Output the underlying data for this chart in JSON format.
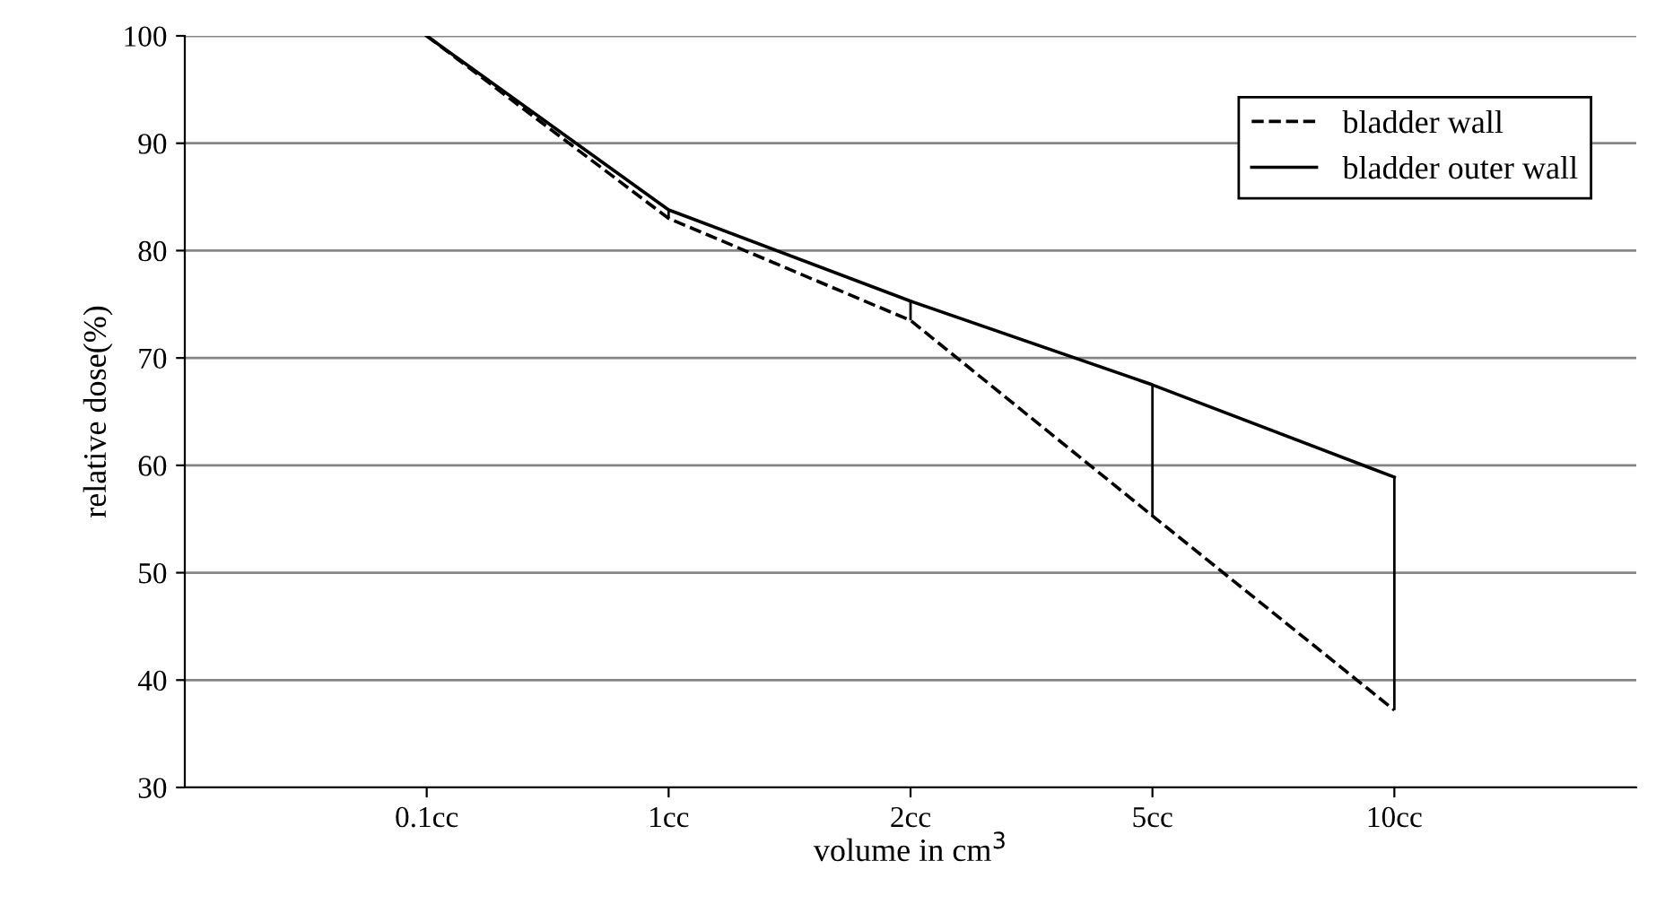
{
  "chart_data": {
    "type": "line",
    "xlabel": "volume in cm$^{3}$",
    "ylabel": "relative dose(%)",
    "categories": [
      "0.1cc",
      "1cc",
      "2cc",
      "5cc",
      "10cc"
    ],
    "series": [
      {
        "name": "bladder wall",
        "color": "#000000",
        "line_style": "dashed",
        "values": [
          100,
          83,
          73.5,
          55.3,
          37.2
        ]
      },
      {
        "name": "bladder outer wall",
        "color": "#000000",
        "line_style": "solid",
        "values": [
          100,
          83.8,
          75.3,
          67.5,
          58.9
        ]
      }
    ],
    "ylim": [
      30,
      100
    ],
    "yticks": [
      30,
      40,
      50,
      60,
      70,
      80,
      90,
      100
    ],
    "grid": "y",
    "legend": "top right",
    "marker": "none"
  }
}
